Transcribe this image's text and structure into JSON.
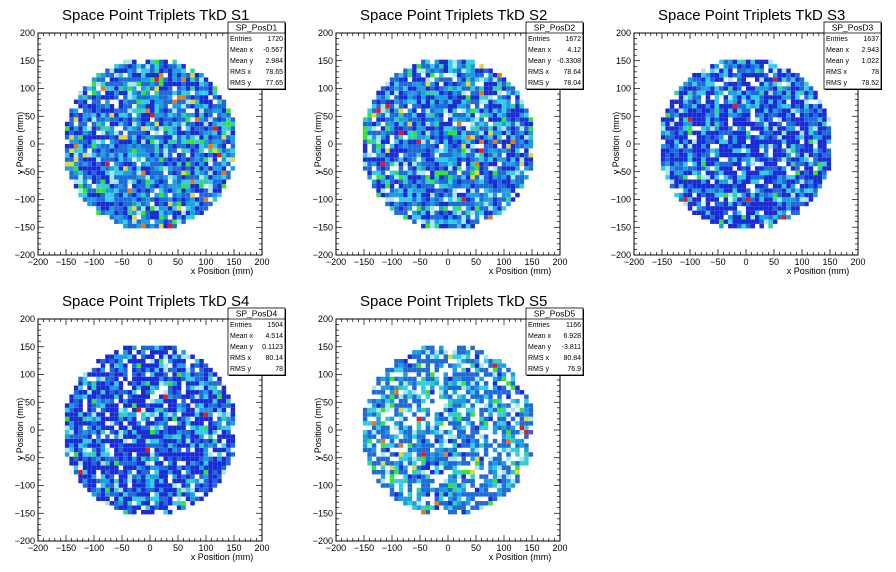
{
  "chart_data": [
    {
      "type": "heatmap",
      "title": "Space Point Triplets TkD S1",
      "xlabel": "x Position (mm)",
      "ylabel": "y Position (mm)",
      "xlim": [
        -200,
        200
      ],
      "ylim": [
        -200,
        200
      ],
      "xticks": [
        "−200",
        "−150",
        "−100",
        "−50",
        "0",
        "50",
        "100",
        "150",
        "200"
      ],
      "yticks": [
        "−200",
        "−150",
        "−100",
        "−50",
        "0",
        "50",
        "100",
        "150",
        "200"
      ],
      "stats": {
        "name": "SP_PosD1",
        "rows": [
          {
            "label": "Entries",
            "value": "1720"
          },
          {
            "label": "Mean x",
            "value": "-0.567"
          },
          {
            "label": "Mean y",
            "value": "2.984"
          },
          {
            "label": "RMS x",
            "value": "78.65"
          },
          {
            "label": "RMS y",
            "value": "77.65"
          }
        ]
      },
      "radius": 155,
      "density": 0.93
    },
    {
      "type": "heatmap",
      "title": "Space Point Triplets TkD S2",
      "xlabel": "x Position (mm)",
      "ylabel": "y Position (mm)",
      "xlim": [
        -200,
        200
      ],
      "ylim": [
        -200,
        200
      ],
      "xticks": [
        "−200",
        "−150",
        "−100",
        "−50",
        "0",
        "50",
        "100",
        "150",
        "200"
      ],
      "yticks": [
        "−200",
        "−150",
        "−100",
        "−50",
        "0",
        "50",
        "100",
        "150",
        "200"
      ],
      "stats": {
        "name": "SP_PosD2",
        "rows": [
          {
            "label": "Entries",
            "value": "1672"
          },
          {
            "label": "Mean x",
            "value": "4.12"
          },
          {
            "label": "Mean y",
            "value": "-0.3308"
          },
          {
            "label": "RMS x",
            "value": "78.64"
          },
          {
            "label": "RMS y",
            "value": "78.04"
          }
        ]
      },
      "radius": 155,
      "density": 0.92
    },
    {
      "type": "heatmap",
      "title": "Space Point Triplets TkD S3",
      "xlabel": "x Position (mm)",
      "ylabel": "y Position (mm)",
      "xlim": [
        -200,
        200
      ],
      "ylim": [
        -200,
        200
      ],
      "xticks": [
        "−200",
        "−150",
        "−100",
        "−50",
        "0",
        "50",
        "100",
        "150",
        "200"
      ],
      "yticks": [
        "−200",
        "−150",
        "−100",
        "−50",
        "0",
        "50",
        "100",
        "150",
        "200"
      ],
      "stats": {
        "name": "SP_PosD3",
        "rows": [
          {
            "label": "Entries",
            "value": "1637"
          },
          {
            "label": "Mean x",
            "value": "2.943"
          },
          {
            "label": "Mean y",
            "value": "1.022"
          },
          {
            "label": "RMS x",
            "value": "78"
          },
          {
            "label": "RMS y",
            "value": "78.52"
          }
        ]
      },
      "radius": 155,
      "density": 0.9
    },
    {
      "type": "heatmap",
      "title": "Space Point Triplets TkD S4",
      "xlabel": "x Position (mm)",
      "ylabel": "y Position (mm)",
      "xlim": [
        -200,
        200
      ],
      "ylim": [
        -200,
        200
      ],
      "xticks": [
        "−200",
        "−150",
        "−100",
        "−50",
        "0",
        "50",
        "100",
        "150",
        "200"
      ],
      "yticks": [
        "−200",
        "−150",
        "−100",
        "−50",
        "0",
        "50",
        "100",
        "150",
        "200"
      ],
      "stats": {
        "name": "SP_PosD4",
        "rows": [
          {
            "label": "Entries",
            "value": "1504"
          },
          {
            "label": "Mean x",
            "value": "4.514"
          },
          {
            "label": "Mean y",
            "value": "0.1123"
          },
          {
            "label": "RMS x",
            "value": "80.14"
          },
          {
            "label": "RMS y",
            "value": "78"
          }
        ]
      },
      "radius": 155,
      "density": 0.88
    },
    {
      "type": "heatmap",
      "title": "Space Point Triplets TkD S5",
      "xlabel": "x Position (mm)",
      "ylabel": "y Position (mm)",
      "xlim": [
        -200,
        200
      ],
      "ylim": [
        -200,
        200
      ],
      "xticks": [
        "−200",
        "−150",
        "−100",
        "−50",
        "0",
        "50",
        "100",
        "150",
        "200"
      ],
      "yticks": [
        "−200",
        "−150",
        "−100",
        "−50",
        "0",
        "50",
        "100",
        "150",
        "200"
      ],
      "stats": {
        "name": "SP_PosD5",
        "rows": [
          {
            "label": "Entries",
            "value": "1166"
          },
          {
            "label": "Mean x",
            "value": "6.928"
          },
          {
            "label": "Mean y",
            "value": "-3.811"
          },
          {
            "label": "RMS x",
            "value": "80.84"
          },
          {
            "label": "RMS y",
            "value": "76.9"
          }
        ]
      },
      "radius": 155,
      "density": 0.72
    }
  ],
  "palette": [
    "#1e6ad8",
    "#1a2bd6",
    "#1a9ee0",
    "#33cce6",
    "#a8e6ec",
    "#2fd0a6",
    "#33e533",
    "#e6d633",
    "#e67a1a",
    "#e61a1a"
  ]
}
